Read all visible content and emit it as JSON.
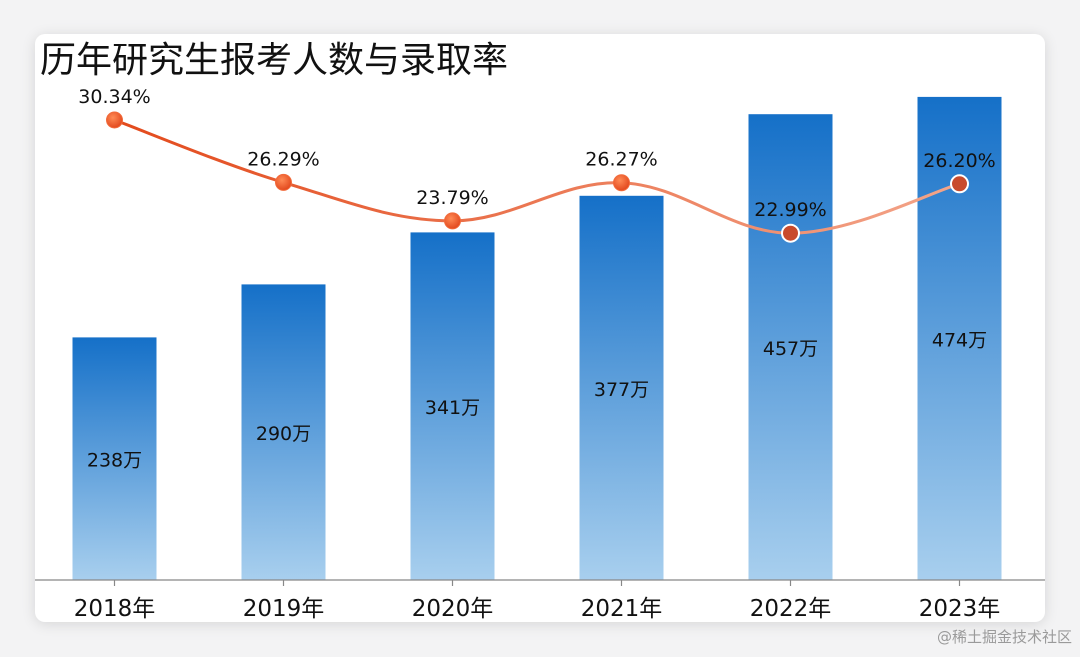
{
  "chart_data": {
    "type": "bar",
    "title": "历年研究生报考人数与录取率",
    "categories": [
      "2018年",
      "2019年",
      "2020年",
      "2021年",
      "2022年",
      "2023年"
    ],
    "bar_series": {
      "values": [
        238,
        290,
        341,
        377,
        457,
        474
      ],
      "labels": [
        "238万",
        "290万",
        "341万",
        "377万",
        "457万",
        "474万"
      ],
      "color_top": "#1570c8",
      "color_bottom": "#a8cfee"
    },
    "line_series": {
      "values": [
        30.34,
        26.29,
        23.79,
        26.27,
        22.99,
        26.2
      ],
      "labels": [
        "30.34%",
        "26.29%",
        "23.79%",
        "26.27%",
        "22.99%",
        "26.20%"
      ],
      "color_start": "#e34a1c",
      "color_end": "#f3a58a"
    },
    "grid": false,
    "legend": "none"
  },
  "watermark": "@稀土掘金技术社区"
}
